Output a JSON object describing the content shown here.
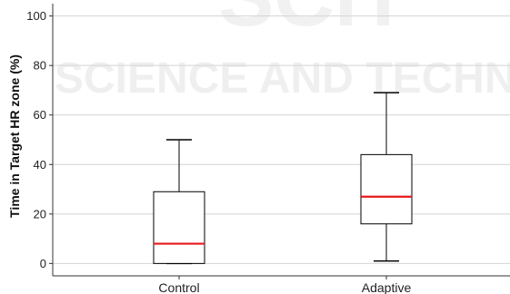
{
  "watermark": {
    "line1": "SCIT",
    "line2": "SCIENCE AND TECHN",
    "color": "#000000"
  },
  "chart_data": {
    "type": "boxplot",
    "title": "",
    "xlabel": "",
    "ylabel": "Time in Target HR zone (%)",
    "ylim": [
      -5,
      105
    ],
    "yticks": [
      0,
      20,
      40,
      60,
      80,
      100
    ],
    "grid": true,
    "categories": [
      "Control",
      "Adaptive"
    ],
    "boxes": [
      {
        "name": "Control",
        "min": 0,
        "q1": 0,
        "median": 8,
        "q3": 29,
        "max": 50
      },
      {
        "name": "Adaptive",
        "min": 1,
        "q1": 16,
        "median": 27,
        "q3": 44,
        "max": 69
      }
    ],
    "median_color": "#e8191b",
    "box_color": "#000000",
    "grid_color": "#d4d4d4"
  }
}
